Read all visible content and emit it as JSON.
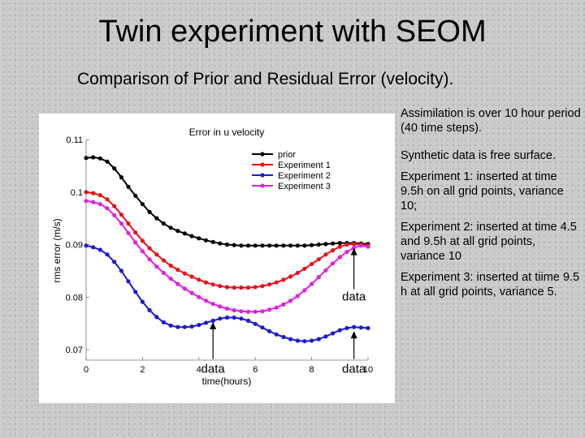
{
  "slide": {
    "title": "Twin experiment with SEOM",
    "subtitle": "Comparison of Prior and Residual Error (velocity)."
  },
  "notes": [
    "Assimilation is over 10 hour period (40 time steps).",
    "Synthetic data is free surface.",
    "Experiment 1: inserted at time 9.5h on all grid points, variance 10;",
    "Experiment 2: inserted at time 4.5 and 9.5h at all grid points, variance 10",
    "Experiment 3: inserted at tiime 9.5 h at all grid points, variance 5."
  ],
  "chart_data": {
    "type": "line",
    "title": "Error in u velocity",
    "xlabel": "time(hours)",
    "ylabel": "rms error (m/s)",
    "xlim": [
      0,
      10
    ],
    "ylim": [
      0.068,
      0.11
    ],
    "xticks": [
      0,
      2,
      4,
      6,
      8,
      10
    ],
    "yticks": [
      0.07,
      0.08,
      0.09,
      0.1,
      0.11
    ],
    "ytick_labels": [
      "0.07",
      "0.08",
      "0.09",
      "0.1",
      "0.11"
    ],
    "legend_position": "top-right",
    "x": [
      0,
      0.25,
      0.5,
      0.75,
      1,
      1.25,
      1.5,
      1.75,
      2,
      2.25,
      2.5,
      2.75,
      3,
      3.25,
      3.5,
      3.75,
      4,
      4.25,
      4.5,
      4.75,
      5,
      5.25,
      5.5,
      5.75,
      6,
      6.25,
      6.5,
      6.75,
      7,
      7.25,
      7.5,
      7.75,
      8,
      8.25,
      8.5,
      8.75,
      9,
      9.25,
      9.5,
      9.75,
      10
    ],
    "series": [
      {
        "name": "prior",
        "color": "#000000",
        "values": [
          0.1065,
          0.1066,
          0.1064,
          0.1058,
          0.1045,
          0.1028,
          0.101,
          0.0993,
          0.0977,
          0.0962,
          0.095,
          0.094,
          0.0932,
          0.0926,
          0.0921,
          0.0916,
          0.0912,
          0.0908,
          0.0905,
          0.0902,
          0.09,
          0.0899,
          0.0898,
          0.0898,
          0.0898,
          0.0898,
          0.0898,
          0.0898,
          0.0898,
          0.0898,
          0.0898,
          0.0898,
          0.0899,
          0.09,
          0.0901,
          0.0902,
          0.0903,
          0.0903,
          0.0903,
          0.0902,
          0.0901
        ]
      },
      {
        "name": "Experiment 1",
        "color": "#e8101a",
        "values": [
          0.1,
          0.0998,
          0.0994,
          0.0986,
          0.0973,
          0.0957,
          0.094,
          0.0923,
          0.0907,
          0.0893,
          0.0881,
          0.087,
          0.086,
          0.0852,
          0.0845,
          0.0839,
          0.0833,
          0.0828,
          0.0824,
          0.0821,
          0.0819,
          0.0818,
          0.0818,
          0.0818,
          0.0819,
          0.0821,
          0.0824,
          0.0828,
          0.0833,
          0.0839,
          0.0846,
          0.0854,
          0.0863,
          0.0872,
          0.0881,
          0.0889,
          0.0896,
          0.09,
          0.0901,
          0.09,
          0.0898
        ]
      },
      {
        "name": "Experiment 2",
        "color": "#1a1ad8",
        "values": [
          0.0898,
          0.0895,
          0.089,
          0.0881,
          0.0867,
          0.085,
          0.083,
          0.081,
          0.0791,
          0.0775,
          0.0762,
          0.0752,
          0.0746,
          0.0743,
          0.0743,
          0.0744,
          0.0747,
          0.0751,
          0.0755,
          0.0759,
          0.0761,
          0.0761,
          0.0759,
          0.0755,
          0.0749,
          0.0742,
          0.0735,
          0.0729,
          0.0724,
          0.072,
          0.0717,
          0.0716,
          0.0717,
          0.072,
          0.0725,
          0.0731,
          0.0737,
          0.0741,
          0.0743,
          0.0742,
          0.0741
        ]
      },
      {
        "name": "Experiment 3",
        "color": "#e020e0",
        "values": [
          0.0983,
          0.0981,
          0.0977,
          0.0969,
          0.0956,
          0.094,
          0.0922,
          0.0904,
          0.0887,
          0.0872,
          0.0858,
          0.0846,
          0.0835,
          0.0825,
          0.0816,
          0.0808,
          0.08,
          0.0793,
          0.0787,
          0.0782,
          0.0778,
          0.0775,
          0.0773,
          0.0772,
          0.0772,
          0.0773,
          0.0776,
          0.078,
          0.0786,
          0.0793,
          0.0802,
          0.0813,
          0.0825,
          0.0838,
          0.0851,
          0.0864,
          0.0876,
          0.0886,
          0.0894,
          0.0898,
          0.0896
        ]
      }
    ],
    "annotations": [
      {
        "label": "data",
        "x": 9.5
      },
      {
        "label": "data",
        "x": 4.5
      },
      {
        "label": "data",
        "x": 9.5
      }
    ]
  }
}
